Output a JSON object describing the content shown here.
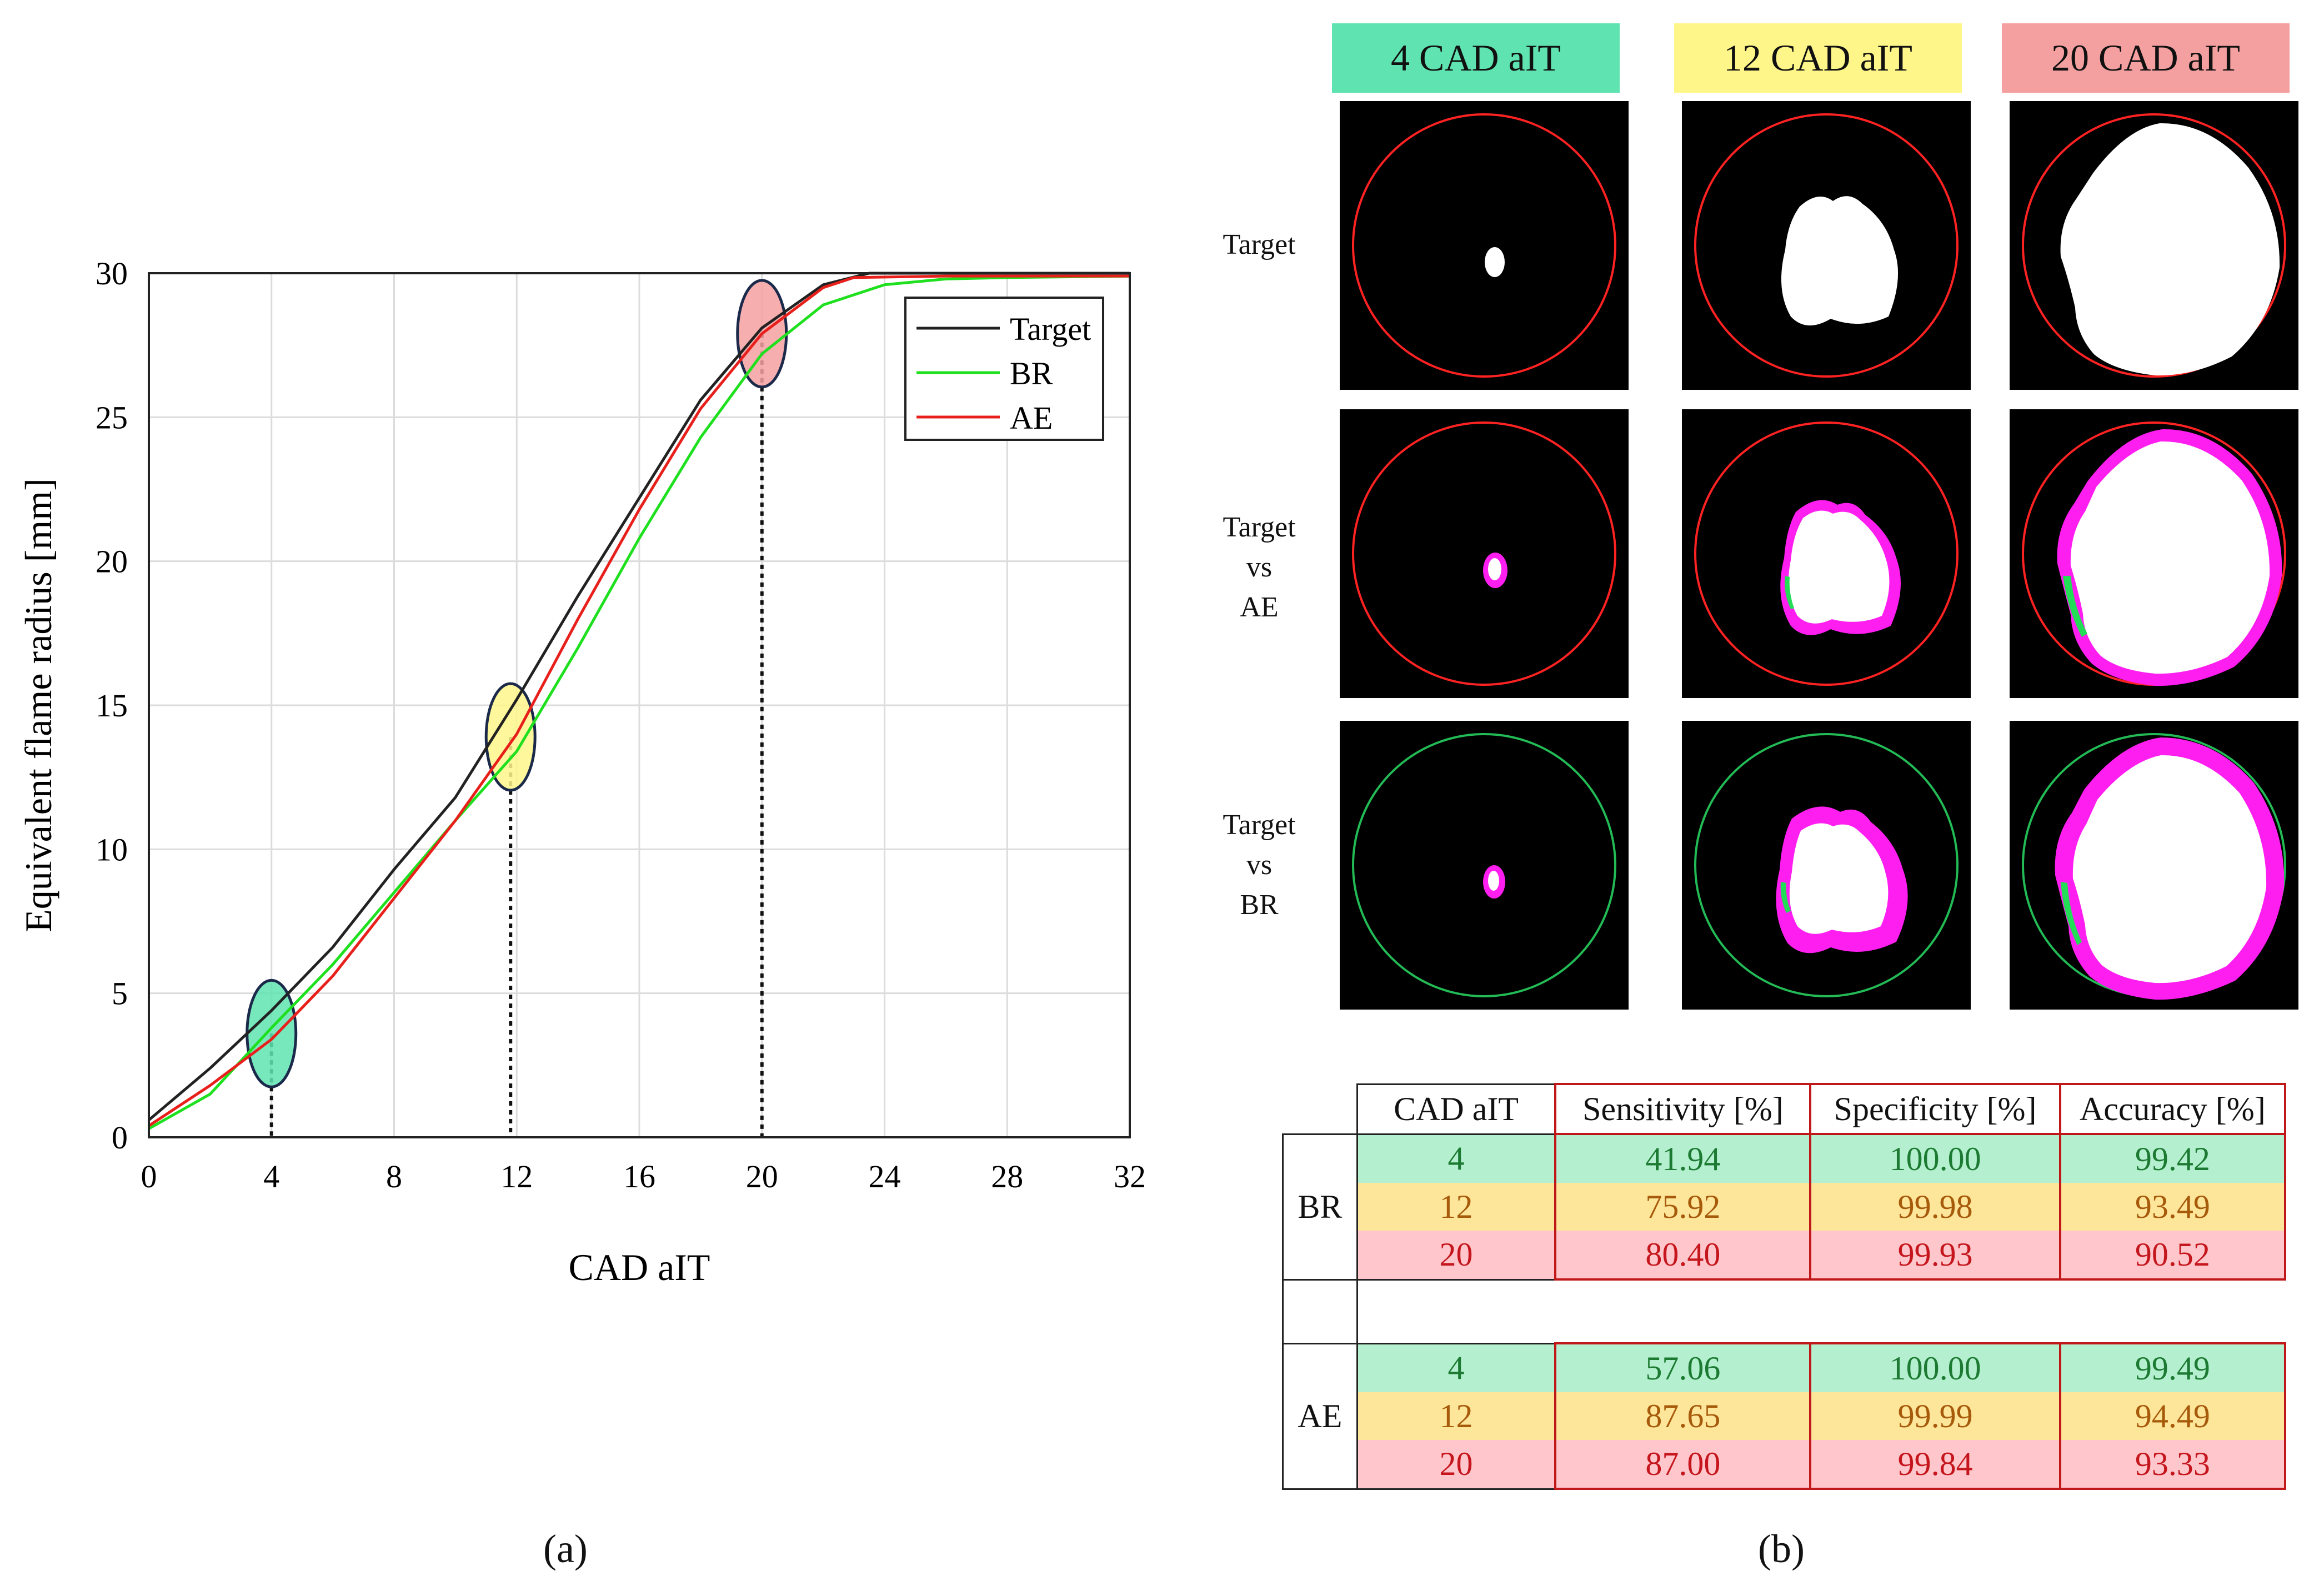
{
  "panel_labels": {
    "a": "(a)",
    "b": "(b)"
  },
  "colors": {
    "target": "#222222",
    "br": "#1ee01e",
    "ae": "#e8201c",
    "hl_4": "#5fe3b0",
    "hl_12": "#fff68a",
    "hl_20": "#f5a0a0",
    "row_4": "#b4f0cf",
    "row_12": "#fde59a",
    "row_20": "#ffc6cc",
    "txt_4": "#1d7a32",
    "txt_12": "#a65a0a",
    "txt_20": "#c4161c",
    "magenta": "#ff1ef0",
    "circle_red": "#ff2222",
    "circle_green": "#22bb55"
  },
  "chart_data": {
    "type": "line",
    "xlabel": "CAD aIT",
    "ylabel": "Equivalent flame radius [mm]",
    "xlim": [
      0,
      32
    ],
    "ylim": [
      0,
      30
    ],
    "xticks": [
      0,
      4,
      8,
      12,
      16,
      20,
      24,
      28,
      32
    ],
    "yticks": [
      0,
      5,
      10,
      15,
      20,
      25,
      30
    ],
    "grid": true,
    "legend_position": "top-right",
    "series": [
      {
        "name": "Target",
        "x": [
          0,
          2,
          4,
          6,
          8,
          10,
          12,
          14,
          16,
          18,
          20,
          22,
          23.5,
          26,
          32
        ],
        "y": [
          0.6,
          2.4,
          4.4,
          6.6,
          9.3,
          11.8,
          15.2,
          18.8,
          22.2,
          25.6,
          28.1,
          29.6,
          30,
          30,
          30
        ]
      },
      {
        "name": "BR",
        "x": [
          0,
          2,
          4,
          6,
          8,
          10,
          12,
          14,
          16,
          18,
          20,
          22,
          24,
          26,
          28,
          32
        ],
        "y": [
          0.3,
          1.5,
          3.8,
          6.0,
          8.5,
          11.0,
          13.4,
          17.0,
          20.8,
          24.3,
          27.2,
          28.9,
          29.6,
          29.8,
          29.85,
          29.9
        ]
      },
      {
        "name": "AE",
        "x": [
          0,
          2,
          4,
          6,
          8,
          10,
          12,
          14,
          16,
          18,
          20,
          22,
          23,
          26,
          32
        ],
        "y": [
          0.4,
          1.8,
          3.4,
          5.6,
          8.3,
          11.0,
          14.0,
          18.0,
          21.8,
          25.3,
          27.9,
          29.5,
          29.85,
          29.9,
          29.9
        ]
      }
    ],
    "highlights": [
      {
        "x": 4,
        "y": 3.6,
        "color_key": "hl_4"
      },
      {
        "x": 11.8,
        "y": 13.9,
        "color_key": "hl_12"
      },
      {
        "x": 20,
        "y": 27.9,
        "color_key": "hl_20"
      }
    ]
  },
  "grid": {
    "columns": [
      {
        "label": "4 CAD aIT",
        "color_key": "hl_4"
      },
      {
        "label": "12 CAD aIT",
        "color_key": "hl_12"
      },
      {
        "label": "20 CAD aIT",
        "color_key": "hl_20"
      }
    ],
    "rows": [
      {
        "lines": [
          "Target"
        ]
      },
      {
        "lines": [
          "Target",
          "vs",
          "AE"
        ]
      },
      {
        "lines": [
          "Target",
          "vs",
          "BR"
        ]
      }
    ]
  },
  "table": {
    "headers": [
      "CAD aIT",
      "Sensitivity [%]",
      "Specificity [%]",
      "Accuracy [%]"
    ],
    "groups": [
      {
        "name": "BR",
        "rows": [
          {
            "cad": "4",
            "sens": "41.94",
            "spec": "100.00",
            "acc": "99.42"
          },
          {
            "cad": "12",
            "sens": "75.92",
            "spec": "99.98",
            "acc": "93.49"
          },
          {
            "cad": "20",
            "sens": "80.40",
            "spec": "99.93",
            "acc": "90.52"
          }
        ]
      },
      {
        "name": "AE",
        "rows": [
          {
            "cad": "4",
            "sens": "57.06",
            "spec": "100.00",
            "acc": "99.49"
          },
          {
            "cad": "12",
            "sens": "87.65",
            "spec": "99.99",
            "acc": "94.49"
          },
          {
            "cad": "20",
            "sens": "87.00",
            "spec": "99.84",
            "acc": "93.33"
          }
        ]
      }
    ]
  }
}
